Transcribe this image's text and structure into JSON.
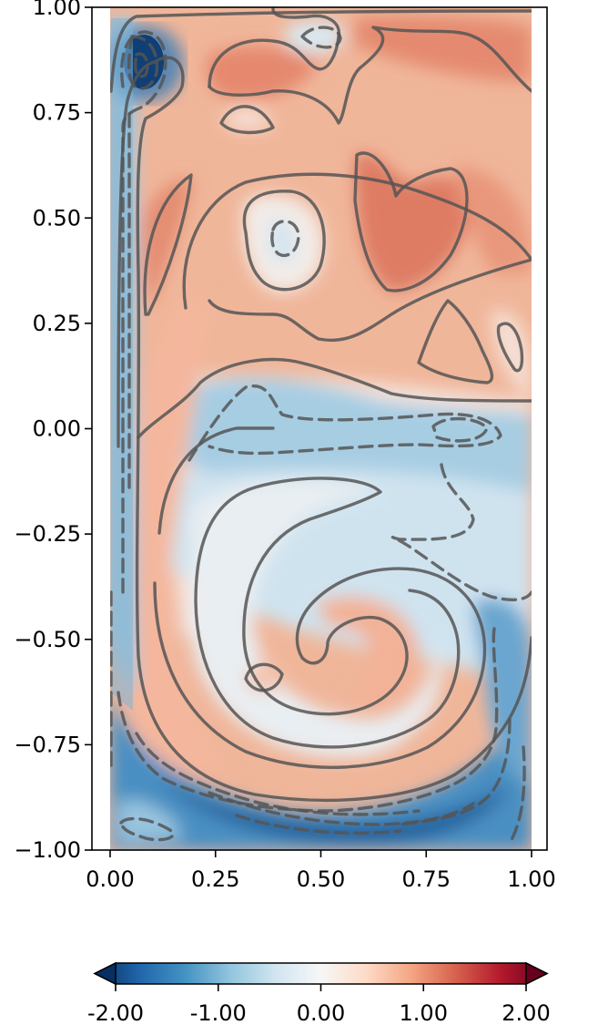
{
  "chart_data": {
    "type": "heatmap",
    "title": "",
    "xlabel": "",
    "ylabel": "",
    "xlim": [
      0.0,
      1.0
    ],
    "ylim": [
      -1.0,
      1.0
    ],
    "x_ticks": [
      "0.00",
      "0.25",
      "0.50",
      "0.75",
      "1.00"
    ],
    "y_ticks": [
      "1.00",
      "0.75",
      "0.50",
      "0.25",
      "0.00",
      "−0.25",
      "−0.50",
      "−0.75",
      "−1.00"
    ],
    "colormap": "RdBu_r",
    "colormap_stops": [
      "#053061",
      "#2166ac",
      "#4393c3",
      "#92c5de",
      "#d1e5f0",
      "#f7f7f7",
      "#fddbc7",
      "#f4a582",
      "#d6604d",
      "#b2182b",
      "#67001f"
    ],
    "value_range": [
      -2.0,
      2.0
    ],
    "grid": false,
    "contours": {
      "positive_style": "solid",
      "negative_style": "dashed",
      "color": "#555555"
    },
    "colorbar": {
      "orientation": "horizontal",
      "extend": "both",
      "ticks": [
        "-2.00",
        "-1.00",
        "0.00",
        "1.00",
        "2.00"
      ],
      "values": [
        -2.0,
        -1.0,
        0.0,
        1.0,
        2.0
      ]
    }
  }
}
